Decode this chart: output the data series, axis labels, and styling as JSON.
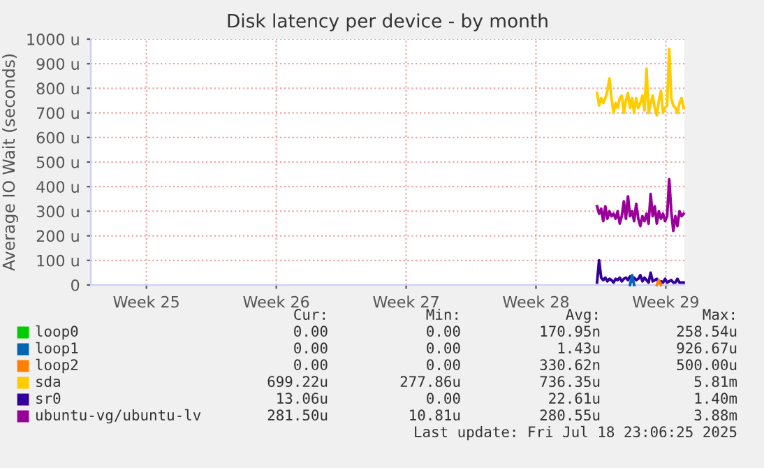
{
  "chart_data": {
    "type": "line",
    "title": "Disk latency per device - by month",
    "ylabel": "Average IO Wait (seconds)",
    "x": [
      "2025-07-14T07:00",
      "2025-07-14T09:40",
      "2025-07-14T12:20",
      "2025-07-14T15:00",
      "2025-07-14T17:40",
      "2025-07-14T20:20",
      "2025-07-14T23:00",
      "2025-07-15T01:40",
      "2025-07-15T04:20",
      "2025-07-15T07:00",
      "2025-07-15T09:40",
      "2025-07-15T12:20",
      "2025-07-15T15:00",
      "2025-07-15T17:40",
      "2025-07-15T20:20",
      "2025-07-15T23:00",
      "2025-07-16T01:40",
      "2025-07-16T04:20",
      "2025-07-16T07:00",
      "2025-07-16T09:40",
      "2025-07-16T12:20",
      "2025-07-16T15:00",
      "2025-07-16T17:40",
      "2025-07-16T20:20",
      "2025-07-16T23:00",
      "2025-07-17T01:40",
      "2025-07-17T04:20",
      "2025-07-17T07:00",
      "2025-07-17T09:40",
      "2025-07-17T12:20",
      "2025-07-17T15:00",
      "2025-07-17T17:40",
      "2025-07-17T20:20",
      "2025-07-17T23:00",
      "2025-07-18T01:40",
      "2025-07-18T04:20",
      "2025-07-18T07:00",
      "2025-07-18T09:40",
      "2025-07-18T12:20",
      "2025-07-18T15:00",
      "2025-07-18T17:40",
      "2025-07-18T20:20",
      "2025-07-18T23:00"
    ],
    "series": [
      {
        "name": "loop0",
        "color": "#00cc00",
        "values": [
          null,
          null,
          null,
          null,
          null,
          null,
          null,
          null,
          null,
          null,
          null,
          null,
          null,
          null,
          null,
          null,
          null,
          null,
          null,
          null,
          null,
          null,
          null,
          null,
          null,
          null,
          null,
          null,
          null,
          null,
          null,
          null,
          null,
          null,
          null,
          null,
          null,
          null,
          null,
          null,
          null,
          null,
          null
        ]
      },
      {
        "name": "loop1",
        "color": "#0066b3",
        "values": [
          null,
          null,
          null,
          null,
          null,
          null,
          null,
          null,
          null,
          null,
          null,
          null,
          null,
          null,
          null,
          null,
          0,
          40,
          0,
          null,
          null,
          null,
          null,
          null,
          null,
          null,
          null,
          null,
          null,
          null,
          null,
          null,
          null,
          null,
          null,
          null,
          null,
          null,
          null,
          null,
          null,
          null,
          null
        ]
      },
      {
        "name": "loop2",
        "color": "#ff8000",
        "values": [
          null,
          null,
          null,
          null,
          null,
          null,
          null,
          null,
          null,
          null,
          null,
          null,
          null,
          null,
          null,
          null,
          null,
          null,
          null,
          null,
          null,
          null,
          null,
          null,
          null,
          null,
          null,
          null,
          null,
          0,
          20,
          0,
          null,
          null,
          null,
          null,
          null,
          null,
          null,
          null,
          null,
          null,
          null
        ]
      },
      {
        "name": "sda",
        "color": "#ffcc00",
        "values": [
          780,
          730,
          760,
          740,
          760,
          790,
          840,
          760,
          700,
          740,
          720,
          760,
          770,
          700,
          750,
          780,
          720,
          760,
          700,
          760,
          720,
          740,
          770,
          710,
          880,
          700,
          740,
          770,
          720,
          690,
          750,
          790,
          700,
          720,
          730,
          960,
          760,
          730,
          720,
          700,
          740,
          760,
          720
        ]
      },
      {
        "name": "sr0",
        "color": "#330099",
        "values": [
          10,
          100,
          30,
          20,
          30,
          15,
          25,
          20,
          10,
          25,
          20,
          30,
          15,
          25,
          30,
          20,
          35,
          15,
          30,
          20,
          25,
          40,
          15,
          30,
          20,
          10,
          50,
          15,
          20,
          25,
          10,
          15,
          10,
          25,
          10,
          15,
          20,
          10,
          10,
          25,
          10,
          10,
          10
        ]
      },
      {
        "name": "ubuntu-vg/ubuntu-lv",
        "color": "#990099",
        "values": [
          320,
          290,
          310,
          260,
          320,
          270,
          300,
          280,
          290,
          270,
          300,
          250,
          280,
          340,
          270,
          360,
          280,
          300,
          260,
          330,
          270,
          240,
          280,
          260,
          290,
          250,
          370,
          280,
          320,
          250,
          300,
          270,
          290,
          260,
          280,
          430,
          300,
          220,
          280,
          240,
          300,
          280,
          290
        ]
      }
    ],
    "xlim": [
      "2025-06-17",
      "2025-07-19"
    ],
    "xticks": [
      {
        "value": "2025-06-20",
        "label": "Week 25"
      },
      {
        "value": "2025-06-27",
        "label": "Week 26"
      },
      {
        "value": "2025-07-04",
        "label": "Week 27"
      },
      {
        "value": "2025-07-11",
        "label": "Week 28"
      },
      {
        "value": "2025-07-18",
        "label": "Week 29"
      }
    ],
    "ylim": [
      0,
      1000
    ],
    "yticks": [
      0,
      {
        "value": 100,
        "label": "100 u"
      },
      {
        "value": 200,
        "label": "200 u"
      },
      {
        "value": 300,
        "label": "300 u"
      },
      {
        "value": 400,
        "label": "400 u"
      },
      {
        "value": 500,
        "label": "500 u"
      },
      {
        "value": 600,
        "label": "600 u"
      },
      {
        "value": 700,
        "label": "700 u"
      },
      {
        "value": 800,
        "label": "800 u"
      },
      {
        "value": 900,
        "label": "900 u"
      },
      {
        "value": 1000,
        "label": "1000 u"
      }
    ],
    "grid": true,
    "legend": "bottom",
    "marker": "none",
    "line_style": "solid",
    "annotations": [
      "Cur:",
      "Min:",
      "Avg:",
      "Max:",
      "0.00",
      "0.00",
      "170.95n",
      "258.54u",
      "0.00",
      "0.00",
      "1.43u",
      "926.67u",
      "0.00",
      "0.00",
      "330.62n",
      "500.00u",
      "699.22u",
      "277.86u",
      "736.35u",
      "5.81m",
      "13.06u",
      "0.00",
      "22.61u",
      "1.40m",
      "281.50u",
      "10.81u",
      "280.55u",
      "3.88m",
      "Last update: Fri Jul 18 23:06:25 2025"
    ]
  }
}
